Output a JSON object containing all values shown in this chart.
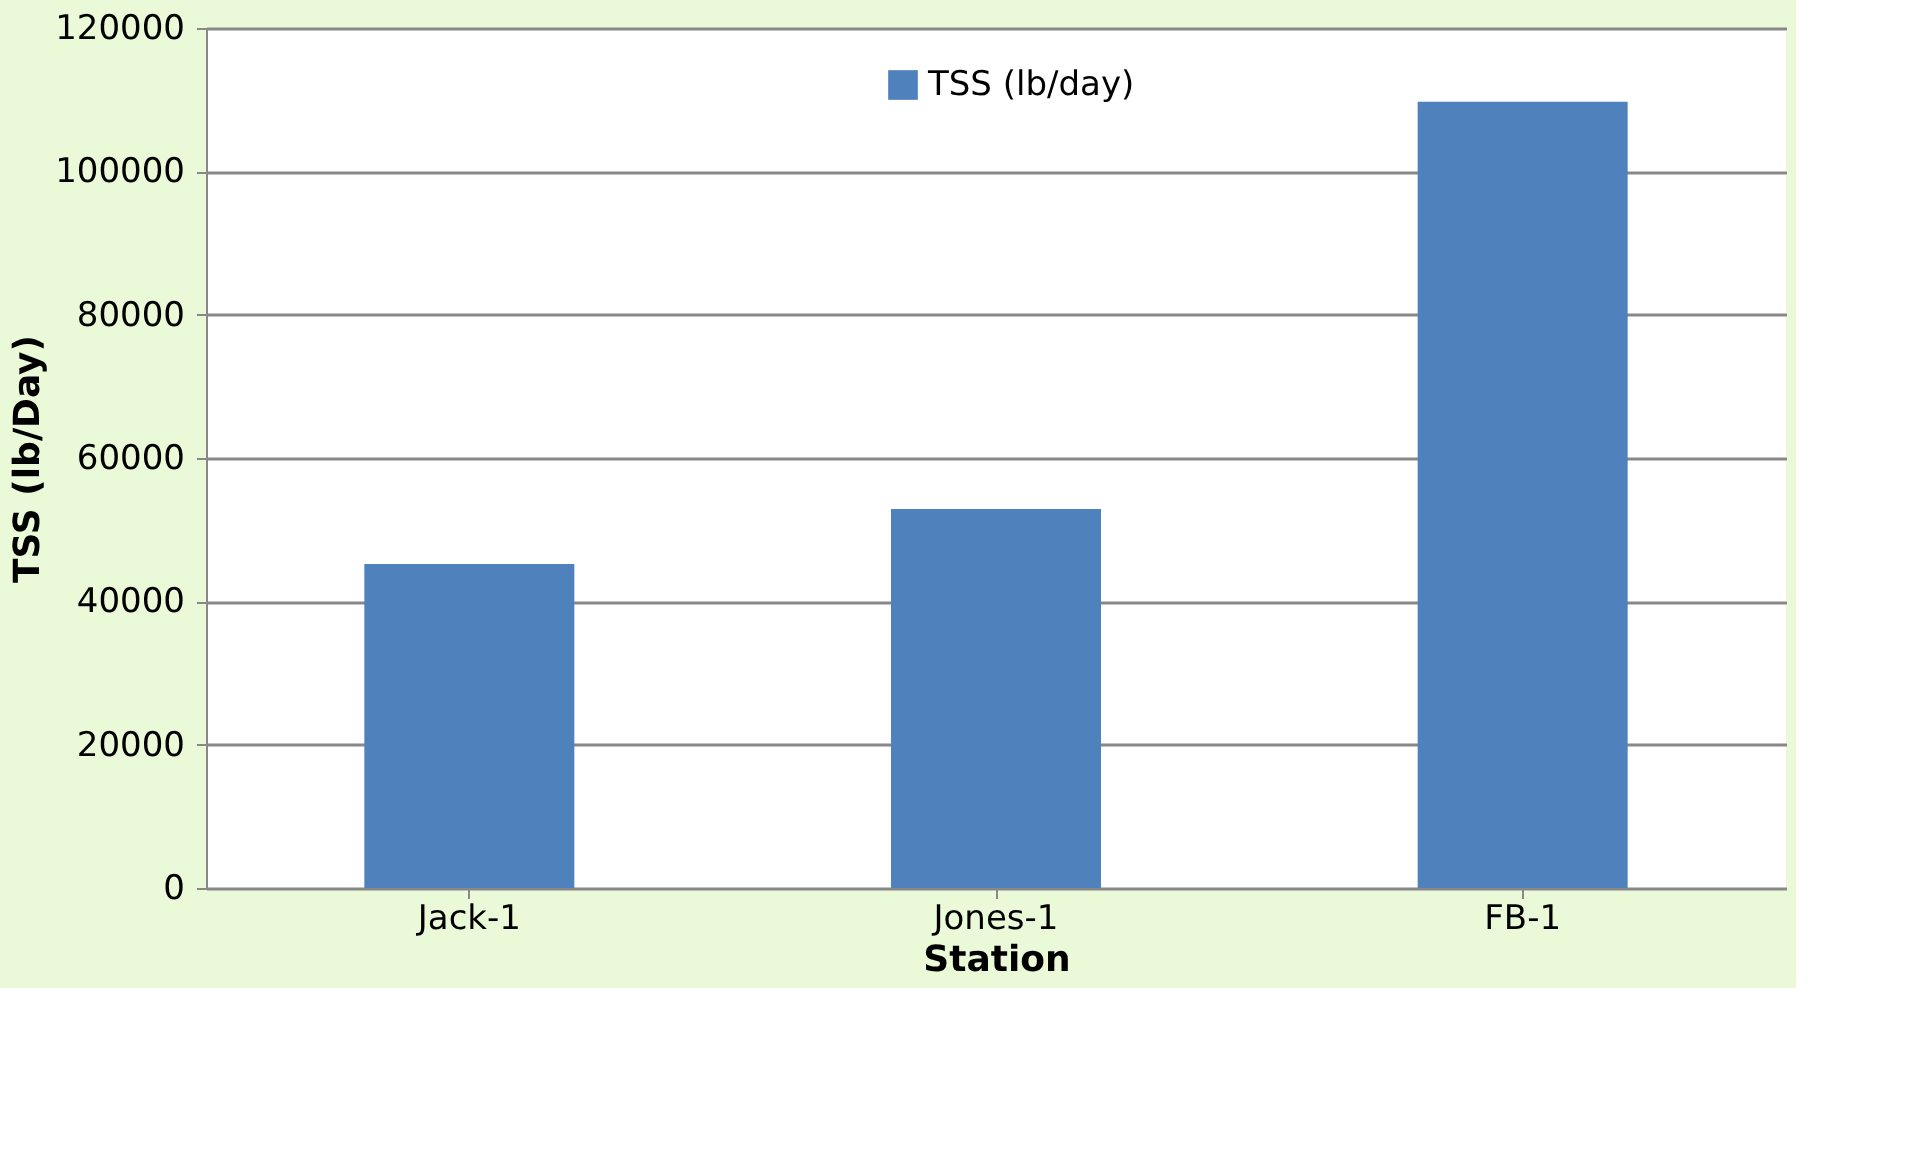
{
  "chart_data": {
    "type": "bar",
    "xlabel": "Station",
    "ylabel": "TSS (lb/Day)",
    "categories": [
      "Jack-1",
      "Jones-1",
      "FB-1"
    ],
    "series": [
      {
        "name": "TSS (lb/day)",
        "color": "#4f81bd",
        "values": [
          45200,
          52900,
          109700
        ]
      }
    ],
    "ylim": [
      0,
      120000
    ],
    "yticks": [
      0,
      20000,
      40000,
      60000,
      80000,
      100000,
      120000
    ],
    "grid": "y",
    "legend": "top"
  }
}
